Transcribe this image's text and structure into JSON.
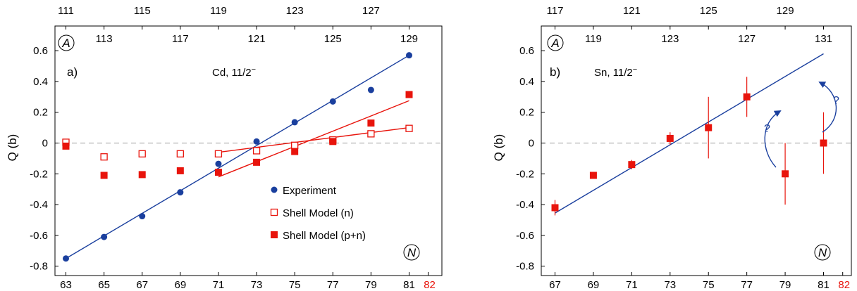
{
  "chart_data": [
    {
      "type": "scatter",
      "panel_label": "a)",
      "title": "Cd, 11/2",
      "title_sup": "−",
      "ylabel": "Q (b)",
      "top_axis_symbol": "A",
      "bottom_axis_symbol": "N",
      "xlim": [
        61.5,
        83.5
      ],
      "ylim": [
        -0.85,
        0.75
      ],
      "x_ticks": [
        "63",
        "65",
        "67",
        "69",
        "71",
        "73",
        "75",
        "77",
        "79",
        "81"
      ],
      "x_extra_tick": "82",
      "y_ticks": [
        "0.6",
        "0.4",
        "0.2",
        "0",
        "-0.2",
        "-0.4",
        "-0.6",
        "-0.8"
      ],
      "top_ticks_row1": [
        {
          "n": 63,
          "a": "111"
        },
        {
          "n": 67,
          "a": "115"
        },
        {
          "n": 71,
          "a": "119"
        },
        {
          "n": 75,
          "a": "123"
        },
        {
          "n": 79,
          "a": "127"
        }
      ],
      "top_ticks_row2": [
        {
          "n": 65,
          "a": "113"
        },
        {
          "n": 69,
          "a": "117"
        },
        {
          "n": 73,
          "a": "121"
        },
        {
          "n": 77,
          "a": "125"
        },
        {
          "n": 81,
          "a": "129"
        }
      ],
      "legend": [
        {
          "label": "Experiment",
          "marker": "circle",
          "color": "#1a3f9e"
        },
        {
          "label": "Shell Model (n)",
          "marker": "square-open",
          "color": "#e8140c"
        },
        {
          "label": "Shell Model (p+n)",
          "marker": "square",
          "color": "#e8140c"
        }
      ],
      "series": [
        {
          "name": "Experiment",
          "marker": "circle",
          "color": "#1a3f9e",
          "x": [
            63,
            65,
            67,
            69,
            71,
            73,
            75,
            77,
            79,
            81
          ],
          "y": [
            -0.75,
            -0.61,
            -0.475,
            -0.32,
            -0.135,
            0.01,
            0.135,
            0.27,
            0.345,
            0.57
          ]
        },
        {
          "name": "Shell Model (n)",
          "marker": "square-open",
          "color": "#e8140c",
          "x": [
            63,
            65,
            67,
            69,
            71,
            73,
            75,
            77,
            79,
            81
          ],
          "y": [
            0.005,
            -0.09,
            -0.07,
            -0.07,
            -0.07,
            -0.05,
            -0.015,
            0.02,
            0.06,
            0.095
          ]
        },
        {
          "name": "Shell Model (p+n)",
          "marker": "square",
          "color": "#e8140c",
          "x": [
            63,
            65,
            67,
            69,
            71,
            73,
            75,
            77,
            79,
            81
          ],
          "y": [
            -0.02,
            -0.21,
            -0.205,
            -0.18,
            -0.19,
            -0.125,
            -0.055,
            0.01,
            0.13,
            0.315
          ]
        }
      ],
      "lines": [
        {
          "color": "#1a3f9e",
          "x": [
            63,
            81
          ],
          "y": [
            -0.75,
            0.57
          ]
        },
        {
          "color": "#e8140c",
          "x": [
            71,
            81
          ],
          "y": [
            -0.06,
            0.1
          ]
        },
        {
          "color": "#e8140c",
          "x": [
            71,
            81
          ],
          "y": [
            -0.22,
            0.275
          ]
        }
      ]
    },
    {
      "type": "scatter",
      "panel_label": "b)",
      "title": "Sn, 11/2",
      "title_sup": "−",
      "ylabel": "Q (b)",
      "top_axis_symbol": "A",
      "bottom_axis_symbol": "N",
      "xlim": [
        65.5,
        83.5
      ],
      "ylim": [
        -0.85,
        0.75
      ],
      "x_ticks": [
        "67",
        "69",
        "71",
        "73",
        "75",
        "77",
        "79",
        "81"
      ],
      "x_extra_tick": "82",
      "y_ticks": [
        "0.6",
        "0.4",
        "0.2",
        "0",
        "-0.2",
        "-0.4",
        "-0.6",
        "-0.8"
      ],
      "top_ticks_row1": [
        {
          "n": 67,
          "a": "117"
        },
        {
          "n": 71,
          "a": "121"
        },
        {
          "n": 75,
          "a": "125"
        },
        {
          "n": 79,
          "a": "129"
        }
      ],
      "top_ticks_row2": [
        {
          "n": 69,
          "a": "119"
        },
        {
          "n": 73,
          "a": "123"
        },
        {
          "n": 77,
          "a": "127"
        },
        {
          "n": 81,
          "a": "131"
        }
      ],
      "annotations": [
        "?",
        "?"
      ],
      "series": [
        {
          "name": "",
          "marker": "square",
          "color": "#e8140c",
          "x": [
            67,
            69,
            71,
            73,
            75,
            77,
            79,
            81
          ],
          "y": [
            -0.42,
            -0.21,
            -0.14,
            0.03,
            0.1,
            0.3,
            -0.2,
            0.0
          ],
          "err": [
            0.05,
            0.015,
            0.03,
            0.04,
            0.2,
            0.13,
            0.2,
            0.2
          ]
        }
      ],
      "lines": [
        {
          "color": "#1a3f9e",
          "x": [
            67,
            81
          ],
          "y": [
            -0.455,
            0.58
          ]
        }
      ]
    }
  ]
}
